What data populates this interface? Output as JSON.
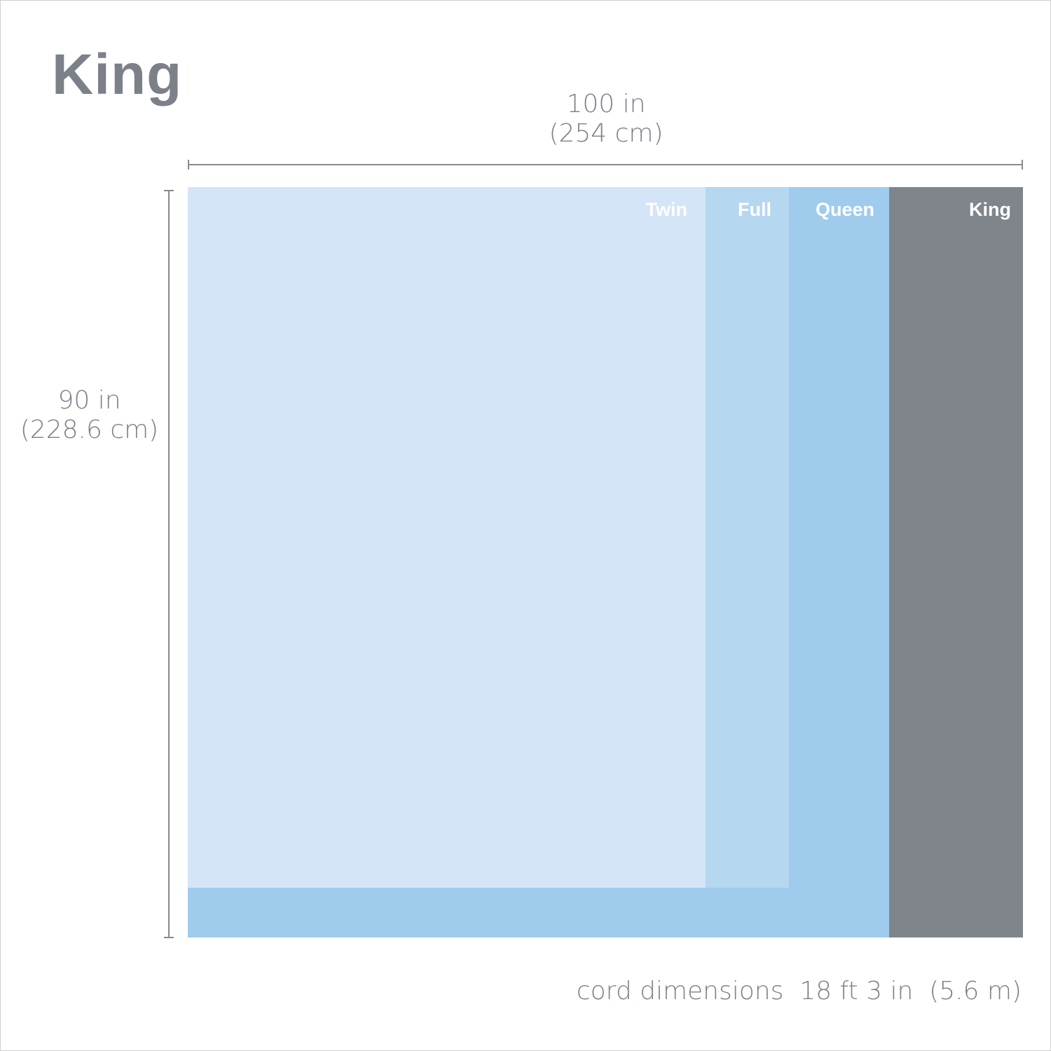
{
  "title": "King",
  "width_label": {
    "line1": "100 in",
    "line2": "(254 cm)"
  },
  "height_label": {
    "line1": "90 in",
    "line2": "(228.6 cm)"
  },
  "sizes": [
    {
      "label": "Twin",
      "color": "#d3e5f6"
    },
    {
      "label": "Full",
      "color": "#b5d7f0"
    },
    {
      "label": "Queen",
      "color": "#9fcbed"
    },
    {
      "label": "King",
      "color": "#80858c"
    }
  ],
  "cord_text": "cord dimensions  18 ft 3 in  (5.6 m)"
}
